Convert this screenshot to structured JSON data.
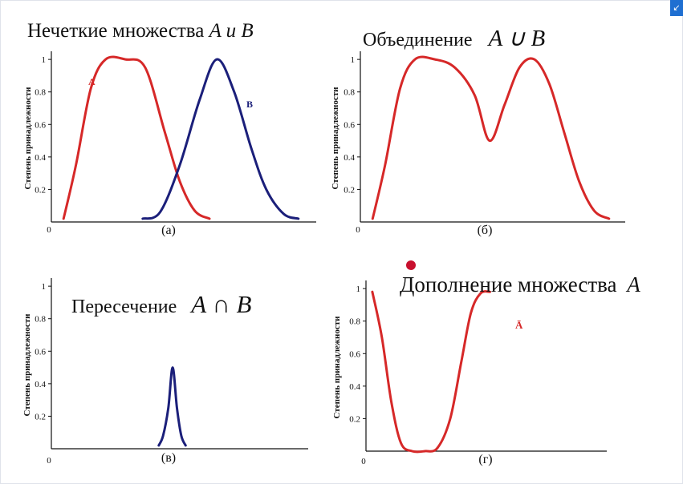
{
  "colors": {
    "A": "#d62828",
    "B": "#1b1f7a",
    "axis": "#111111"
  },
  "corner_icon": "expand-icon",
  "marker": "red-dot",
  "chart_data": [
    {
      "type": "line",
      "id": "a",
      "title_prefix": "Нечеткие множества",
      "title_math": "A и B",
      "panel_label": "(а)",
      "ylabel": "Степень принадлежности",
      "yticks": [
        "0.2",
        "0.4",
        "0.6",
        "0.8",
        "1"
      ],
      "xtick": "0",
      "ylim": [
        0,
        1.05
      ],
      "xlim": [
        0,
        10
      ],
      "series": [
        {
          "name": "A",
          "color": "A",
          "x": [
            0.3,
            0.8,
            1.4,
            2.0,
            2.8,
            3.6,
            4.4,
            5.0,
            5.6,
            6.2
          ],
          "y": [
            0.02,
            0.35,
            0.82,
            1.0,
            1.0,
            0.95,
            0.55,
            0.25,
            0.07,
            0.02
          ]
        },
        {
          "name": "B",
          "color": "B",
          "x": [
            3.5,
            4.2,
            5.0,
            5.8,
            6.5,
            7.2,
            7.9,
            8.5,
            9.2,
            9.8
          ],
          "y": [
            0.02,
            0.06,
            0.35,
            0.75,
            1.0,
            0.8,
            0.45,
            0.2,
            0.05,
            0.02
          ]
        }
      ]
    },
    {
      "type": "line",
      "id": "b",
      "title_prefix": "Объединение",
      "title_math": "A ∪ B",
      "panel_label": "(б)",
      "ylabel": "Степень принадлежности",
      "yticks": [
        "0.2",
        "0.4",
        "0.6",
        "0.8",
        "1"
      ],
      "xtick": "0",
      "ylim": [
        0,
        1.05
      ],
      "xlim": [
        0,
        10
      ],
      "series": [
        {
          "color": "A",
          "x": [
            0.3,
            0.8,
            1.4,
            2.0,
            2.8,
            3.6,
            4.4,
            5.0,
            5.6,
            6.2,
            6.8,
            7.4,
            8.0,
            8.6,
            9.2,
            9.8
          ],
          "y": [
            0.02,
            0.35,
            0.82,
            1.0,
            1.0,
            0.95,
            0.78,
            0.5,
            0.72,
            0.95,
            1.0,
            0.85,
            0.55,
            0.25,
            0.07,
            0.02
          ]
        }
      ]
    },
    {
      "type": "line",
      "id": "c",
      "title_prefix": "Пересечение",
      "title_math": "A ∩ B",
      "panel_label": "(в)",
      "ylabel": "Степень принадлежности",
      "yticks": [
        "0.2",
        "0.4",
        "0.6",
        "0.8",
        "1"
      ],
      "xtick": "0",
      "ylim": [
        0,
        1.05
      ],
      "xlim": [
        0,
        10
      ],
      "series": [
        {
          "color": "B",
          "x": [
            3.5,
            4.0,
            4.6,
            5.1,
            5.6,
            6.1,
            6.6
          ],
          "y": [
            0.02,
            0.08,
            0.25,
            0.5,
            0.25,
            0.08,
            0.02
          ]
        }
      ]
    },
    {
      "type": "line",
      "id": "d",
      "title_prefix": "Дополнение множества",
      "title_math": "A",
      "panel_label": "(г)",
      "ylabel": "Степень принадлежности",
      "yticks": [
        "0.2",
        "0.4",
        "0.6",
        "0.8",
        "1"
      ],
      "xtick": "0",
      "curve_label": "Ā",
      "ylim": [
        0,
        1.05
      ],
      "xlim": [
        0,
        10
      ],
      "series": [
        {
          "name": "Ā",
          "color": "A",
          "x": [
            0.3,
            0.9,
            1.5,
            2.1,
            2.8,
            3.6,
            4.4,
            5.2,
            5.9,
            6.5,
            7.1,
            7.7
          ],
          "y": [
            0.98,
            0.7,
            0.3,
            0.05,
            0.0,
            0.0,
            0.02,
            0.2,
            0.55,
            0.85,
            0.97,
            0.98
          ]
        }
      ]
    }
  ]
}
